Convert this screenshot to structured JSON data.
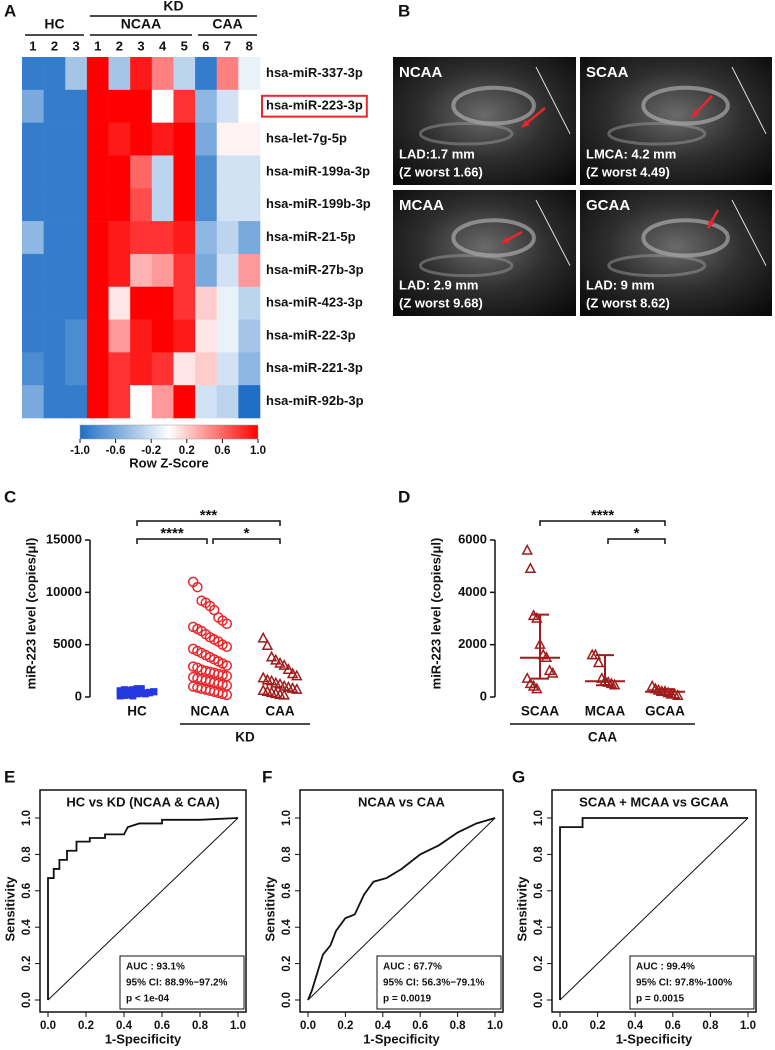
{
  "figure": {
    "A": {
      "letter": "A",
      "type": "heatmap",
      "super_group": "KD",
      "super_group_span": [
        1,
        2
      ],
      "groups": [
        "HC",
        "NCAA",
        "CAA"
      ],
      "group_sizes": [
        3,
        5,
        3
      ],
      "columns": [
        "1",
        "2",
        "3",
        "1",
        "2",
        "3",
        "4",
        "5",
        "6",
        "7",
        "8"
      ],
      "rows": [
        "hsa-miR-337-3p",
        "hsa-miR-223-3p",
        "hsa-let-7g-5p",
        "hsa-miR-199a-3p",
        "hsa-miR-199b-3p",
        "hsa-miR-21-5p",
        "hsa-miR-27b-3p",
        "hsa-miR-423-3p",
        "hsa-miR-22-3p",
        "hsa-miR-221-3p",
        "hsa-miR-92b-3p"
      ],
      "highlight_row": 1,
      "values": [
        [
          -0.9,
          -0.9,
          -0.4,
          1.0,
          -0.4,
          0.9,
          0.5,
          -0.3,
          -0.9,
          0.5,
          -0.1
        ],
        [
          -0.6,
          -0.9,
          -0.9,
          1.0,
          1.0,
          1.0,
          0.0,
          0.8,
          -0.5,
          -0.2,
          0.0
        ],
        [
          -0.9,
          -0.9,
          -0.9,
          1.0,
          0.9,
          1.0,
          0.9,
          1.0,
          -0.6,
          0.05,
          0.05
        ],
        [
          -0.9,
          -0.9,
          -0.9,
          1.0,
          1.0,
          0.6,
          -0.3,
          1.0,
          -0.8,
          -0.2,
          -0.2
        ],
        [
          -0.9,
          -0.9,
          -0.9,
          1.0,
          1.0,
          0.7,
          -0.3,
          1.0,
          -0.8,
          -0.2,
          -0.2
        ],
        [
          -0.5,
          -0.9,
          -0.9,
          1.0,
          0.9,
          0.8,
          0.8,
          0.9,
          -0.5,
          -0.3,
          -0.6
        ],
        [
          -0.9,
          -0.9,
          -0.9,
          1.0,
          0.9,
          0.3,
          0.4,
          0.8,
          -0.6,
          -0.2,
          0.4
        ],
        [
          -0.9,
          -0.9,
          -0.9,
          1.0,
          0.1,
          1.0,
          1.0,
          0.8,
          0.2,
          -0.1,
          -0.3
        ],
        [
          -0.9,
          -0.9,
          -0.8,
          1.0,
          0.4,
          0.9,
          1.0,
          0.9,
          0.1,
          -0.1,
          -0.4
        ],
        [
          -0.8,
          -0.9,
          -0.8,
          1.0,
          0.8,
          0.9,
          0.8,
          0.1,
          0.2,
          -0.2,
          -0.5
        ],
        [
          -0.6,
          -0.9,
          -0.9,
          1.0,
          0.8,
          0.0,
          0.4,
          1.0,
          -0.2,
          -0.3,
          -1.0
        ]
      ],
      "zlim": [
        -1,
        1
      ],
      "colorbar": {
        "ticks": [
          {
            "value": -1,
            "label": "-1.0"
          },
          -0.6,
          -0.2,
          0.2,
          0.6,
          {
            "value": 1,
            "label": "1.0"
          }
        ],
        "label": "Row Z-Score"
      }
    },
    "B": {
      "letter": "B",
      "type": "image-grid",
      "images": [
        {
          "title": "NCAA",
          "lines": [
            "LAD:1.7 mm",
            "(Z worst 1.66)"
          ]
        },
        {
          "title": "SCAA",
          "lines": [
            "LMCA: 4.2 mm",
            "(Z worst 4.49)"
          ]
        },
        {
          "title": "MCAA",
          "lines": [
            "LAD: 2.9 mm",
            "(Z worst 9.68)"
          ]
        },
        {
          "title": "GCAA",
          "lines": [
            "LAD: 9 mm",
            "(Z worst 8.62)"
          ]
        }
      ]
    },
    "C": {
      "letter": "C",
      "type": "dot-plot",
      "ylabel": "miR-223 level (copies/μl)",
      "ylim": [
        0,
        15000
      ],
      "yticks": [
        0,
        5000,
        10000,
        15000
      ],
      "categories": [
        "HC",
        "NCAA",
        "CAA"
      ],
      "group_label": "KD",
      "group_span": [
        1,
        2
      ],
      "colors": [
        "#2438e0",
        "#e8262b",
        "#a01c1c"
      ],
      "markers": [
        "square",
        "circle",
        "triangle"
      ],
      "points": [
        [
          100,
          150,
          200,
          250,
          300,
          350,
          400,
          450,
          500,
          550,
          600,
          650,
          700,
          750,
          800,
          300,
          400,
          500,
          600,
          700,
          200,
          100,
          800,
          750
        ],
        [
          11000,
          10500,
          9200,
          9000,
          8700,
          8300,
          7600,
          7300,
          7000,
          6700,
          6500,
          6300,
          6000,
          5700,
          5500,
          5300,
          5000,
          4800,
          4600,
          4400,
          4200,
          4000,
          3800,
          3600,
          3400,
          3200,
          3000,
          2900,
          2800,
          2600,
          2500,
          2400,
          2300,
          2200,
          2100,
          2000,
          1900,
          1800,
          1700,
          1600,
          1500,
          1400,
          1300,
          1200,
          1100,
          1000,
          900,
          800,
          700,
          600,
          500,
          400,
          300,
          200
        ],
        [
          5600,
          4900,
          3800,
          3500,
          3200,
          3000,
          2600,
          2200,
          2000,
          1800,
          1600,
          1500,
          1300,
          1200,
          1000,
          900,
          800,
          700,
          600,
          500,
          400,
          300,
          200,
          150
        ]
      ],
      "comparisons": [
        {
          "pair": [
            0,
            2
          ],
          "label": "***",
          "level": 0
        },
        {
          "pair": [
            0,
            1
          ],
          "label": "****",
          "level": 1
        },
        {
          "pair": [
            1,
            2
          ],
          "label": "*",
          "level": 1
        }
      ]
    },
    "D": {
      "letter": "D",
      "type": "dot-plot",
      "ylabel": "miR-223 level (copies/μl)",
      "ylim": [
        0,
        6000
      ],
      "yticks": [
        0,
        2000,
        4000,
        6000
      ],
      "categories": [
        "SCAA",
        "MCAA",
        "GCAA"
      ],
      "group_label": "CAA",
      "group_span": [
        0,
        2
      ],
      "colors": [
        "#a01c1c",
        "#a01c1c",
        "#a01c1c"
      ],
      "markers": [
        "triangle",
        "triangle",
        "triangle"
      ],
      "points": [
        [
          5600,
          4900,
          3100,
          3000,
          2000,
          1600,
          1500,
          1000,
          900,
          700,
          500,
          400,
          300
        ],
        [
          1600,
          1600,
          1300,
          700,
          600,
          550,
          500,
          450
        ],
        [
          400,
          300,
          250,
          200,
          200,
          150,
          100,
          100,
          50
        ]
      ],
      "summary": [
        {
          "median": 1500,
          "q1": 700,
          "q3": 3150
        },
        {
          "median": 600,
          "q1": 450,
          "q3": 1600
        },
        {
          "median": 200,
          "q1": 100,
          "q3": 300
        }
      ],
      "comparisons": [
        {
          "pair": [
            0,
            2
          ],
          "label": "****",
          "level": 0
        },
        {
          "pair": [
            1,
            2
          ],
          "label": "*",
          "level": 1
        }
      ]
    },
    "E": {
      "letter": "E",
      "type": "roc",
      "title": "HC vs KD (NCAA & CAA)",
      "xlabel": "1-Specificity",
      "ylabel": "Sensitivity",
      "xlim": [
        0,
        1
      ],
      "ylim": [
        0,
        1
      ],
      "xticks": [
        {
          "value": 0,
          "label": "0.0"
        },
        0.2,
        0.4,
        0.6,
        0.8,
        {
          "value": 1,
          "label": "1.0"
        }
      ],
      "yticks": [
        {
          "value": 0,
          "label": "0.0"
        },
        0.2,
        0.4,
        0.6,
        0.8,
        {
          "value": 1,
          "label": "1.0"
        }
      ],
      "x": [
        0,
        0,
        0.03,
        0.03,
        0.06,
        0.06,
        0.1,
        0.1,
        0.15,
        0.15,
        0.22,
        0.22,
        0.3,
        0.3,
        0.4,
        0.42,
        0.48,
        0.6,
        0.6,
        0.8,
        1
      ],
      "y": [
        0,
        0.67,
        0.67,
        0.72,
        0.72,
        0.77,
        0.77,
        0.82,
        0.82,
        0.87,
        0.87,
        0.89,
        0.89,
        0.91,
        0.91,
        0.95,
        0.97,
        0.97,
        0.99,
        0.99,
        1
      ],
      "stats": [
        "AUC : 93.1%",
        "95% CI: 88.9%−97.2%",
        "p < 1e-04"
      ]
    },
    "F": {
      "letter": "F",
      "type": "roc",
      "title": "NCAA vs CAA",
      "xlabel": "1-Specificity",
      "ylabel": "Sensitivity",
      "xlim": [
        0,
        1
      ],
      "ylim": [
        0,
        1
      ],
      "xticks": [
        {
          "value": 0,
          "label": "0.0"
        },
        0.2,
        0.4,
        0.6,
        0.8,
        {
          "value": 1,
          "label": "1.0"
        }
      ],
      "yticks": [
        {
          "value": 0,
          "label": "0.0"
        },
        0.2,
        0.4,
        0.6,
        0.8,
        {
          "value": 1,
          "label": "1.0"
        }
      ],
      "x": [
        0,
        0.02,
        0.05,
        0.08,
        0.12,
        0.15,
        0.2,
        0.25,
        0.3,
        0.35,
        0.42,
        0.5,
        0.6,
        0.7,
        0.8,
        0.9,
        1
      ],
      "y": [
        0,
        0.05,
        0.15,
        0.25,
        0.3,
        0.38,
        0.45,
        0.47,
        0.58,
        0.65,
        0.67,
        0.72,
        0.8,
        0.85,
        0.92,
        0.97,
        1
      ],
      "stats": [
        "AUC : 67.7%",
        "95% CI: 56.3%−79.1%",
        "p = 0.0019"
      ]
    },
    "G": {
      "letter": "G",
      "type": "roc",
      "title": "SCAA + MCAA vs GCAA",
      "xlabel": "1-Specificity",
      "ylabel": "Sensitivity",
      "xlim": [
        0,
        1
      ],
      "ylim": [
        0,
        1
      ],
      "xticks": [
        {
          "value": 0,
          "label": "0.0"
        },
        0.2,
        0.4,
        0.6,
        0.8,
        {
          "value": 1,
          "label": "1.0"
        }
      ],
      "yticks": [
        {
          "value": 0,
          "label": "0.0"
        },
        0.2,
        0.4,
        0.6,
        0.8,
        {
          "value": 1,
          "label": "1.0"
        }
      ],
      "x": [
        0,
        0,
        0.12,
        0.12,
        1
      ],
      "y": [
        0,
        0.95,
        0.95,
        1,
        1
      ],
      "stats": [
        "AUC : 99.4%",
        "95% CI: 97.8%-100%",
        "p = 0.0015"
      ]
    }
  }
}
